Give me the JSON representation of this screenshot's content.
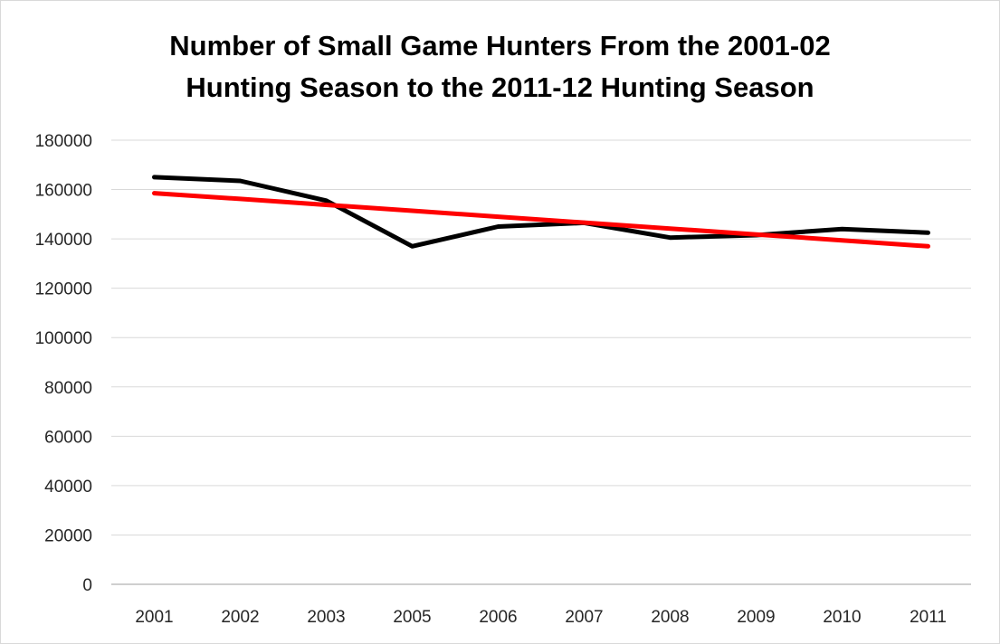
{
  "chart_data": {
    "type": "line",
    "title_line1": "Number of Small Game Hunters From the 2001-02",
    "title_line2": "Hunting Season to the 2011-12 Hunting Season",
    "categories": [
      "2001",
      "2002",
      "2003",
      "2005",
      "2006",
      "2007",
      "2008",
      "2009",
      "2010",
      "2011"
    ],
    "series": [
      {
        "color": "#000000",
        "values": [
          165000,
          163500,
          155500,
          137000,
          145000,
          146500,
          140500,
          141500,
          144000,
          142500
        ]
      },
      {
        "color": "#ff0000",
        "values": [
          158500,
          156200,
          153800,
          151400,
          149000,
          146600,
          144200,
          141800,
          139400,
          137000
        ]
      }
    ],
    "yticks": [
      "0",
      "20000",
      "40000",
      "60000",
      "80000",
      "100000",
      "120000",
      "140000",
      "160000",
      "180000"
    ],
    "ylim": [
      0,
      180000
    ],
    "grid": true
  }
}
